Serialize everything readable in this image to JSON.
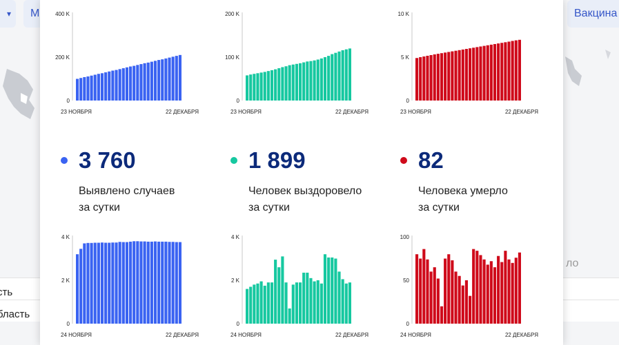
{
  "background": {
    "left_dropdown_arrow": "▾",
    "left_chip_label": "М",
    "right_chip_label": "Вакцина",
    "right_text_fragment": "ло",
    "list_rows": [
      "сть",
      "бласть"
    ]
  },
  "colors": {
    "cases": "#3a63f2",
    "recovered": "#16c8a0",
    "deaths": "#cf0a1a",
    "number": "#0c2a7a"
  },
  "stats": [
    {
      "value": "3 760",
      "label_line1": "Выявлено случаев",
      "label_line2": "за сутки"
    },
    {
      "value": "1 899",
      "label_line1": "Человек выздоровело",
      "label_line2": "за сутки"
    },
    {
      "value": "82",
      "label_line1": "Человека умерло",
      "label_line2": "за сутки"
    }
  ],
  "chart_data": [
    {
      "type": "bar",
      "title": "",
      "series_key": "cases_total",
      "ylim": [
        0,
        400000
      ],
      "yticks": [
        "0",
        "200 K",
        "400 K"
      ],
      "start_label": "23 НОЯБРЯ",
      "end_label": "22 ДЕКАБРЯ",
      "values": [
        100000,
        104000,
        108000,
        111000,
        115000,
        119000,
        123000,
        126000,
        130000,
        134000,
        138000,
        141000,
        145000,
        149000,
        153000,
        157000,
        160000,
        164000,
        168000,
        172000,
        175000,
        179000,
        183000,
        187000,
        190000,
        194000,
        198000,
        202000,
        206000,
        210000
      ]
    },
    {
      "type": "bar",
      "title": "",
      "series_key": "recovered_total",
      "ylim": [
        0,
        200000
      ],
      "yticks": [
        "0",
        "100 K",
        "200 K"
      ],
      "start_label": "23 НОЯБРЯ",
      "end_label": "22 ДЕКАБРЯ",
      "values": [
        58000,
        60000,
        61500,
        63000,
        64500,
        66000,
        68000,
        70000,
        72000,
        74500,
        77000,
        79000,
        81500,
        83000,
        84500,
        86000,
        88000,
        90000,
        91000,
        92500,
        94500,
        97000,
        100000,
        103000,
        107000,
        110000,
        113000,
        116000,
        118000,
        120000
      ]
    },
    {
      "type": "bar",
      "title": "",
      "series_key": "deaths_total",
      "ylim": [
        0,
        10000
      ],
      "yticks": [
        "0",
        "5 K",
        "10 K"
      ],
      "start_label": "23 НОЯБРЯ",
      "end_label": "22 ДЕКАБРЯ",
      "values": [
        4900,
        5000,
        5080,
        5160,
        5240,
        5320,
        5390,
        5460,
        5530,
        5600,
        5670,
        5740,
        5810,
        5880,
        5950,
        6020,
        6090,
        6160,
        6230,
        6300,
        6370,
        6440,
        6510,
        6580,
        6650,
        6720,
        6790,
        6870,
        6940,
        7000
      ]
    },
    {
      "type": "bar",
      "title": "",
      "series_key": "cases_daily",
      "ylim": [
        0,
        4000
      ],
      "yticks": [
        "0",
        "2 K",
        "4 K"
      ],
      "start_label": "24 НОЯБРЯ",
      "end_label": "22 ДЕКАБРЯ",
      "values": [
        3200,
        3450,
        3700,
        3720,
        3720,
        3730,
        3730,
        3740,
        3730,
        3730,
        3740,
        3740,
        3770,
        3760,
        3760,
        3780,
        3800,
        3800,
        3790,
        3790,
        3780,
        3780,
        3790,
        3780,
        3780,
        3780,
        3770,
        3770,
        3760,
        3760
      ]
    },
    {
      "type": "bar",
      "title": "",
      "series_key": "recovered_daily",
      "ylim": [
        0,
        4000
      ],
      "yticks": [
        "0",
        "2 K",
        "4 K"
      ],
      "start_label": "24 НОЯБРЯ",
      "end_label": "22 ДЕКАБРЯ",
      "values": [
        1600,
        1700,
        1800,
        1850,
        1950,
        1750,
        1900,
        1900,
        2950,
        2600,
        3100,
        1900,
        700,
        1800,
        1900,
        1900,
        2350,
        2350,
        2100,
        1950,
        2000,
        1850,
        3200,
        3050,
        3050,
        3000,
        2400,
        2050,
        1850,
        1899
      ]
    },
    {
      "type": "bar",
      "title": "",
      "series_key": "deaths_daily",
      "ylim": [
        0,
        100
      ],
      "yticks": [
        "0",
        "50",
        "100"
      ],
      "start_label": "24 НОЯБРЯ",
      "end_label": "22 ДЕКАБРЯ",
      "values": [
        80,
        75,
        86,
        74,
        60,
        65,
        52,
        20,
        75,
        80,
        73,
        60,
        55,
        44,
        50,
        32,
        86,
        84,
        79,
        74,
        68,
        72,
        65,
        78,
        71,
        84,
        74,
        70,
        76,
        82
      ]
    }
  ]
}
